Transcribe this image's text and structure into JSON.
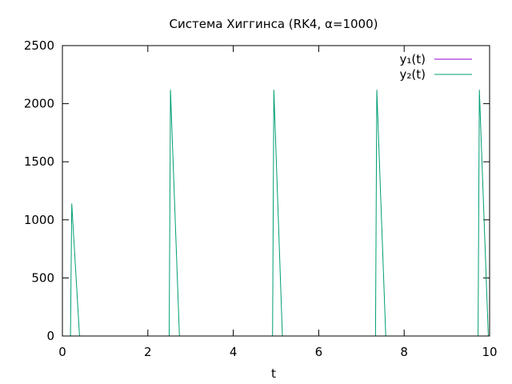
{
  "chart_data": {
    "type": "line",
    "title": "Система Хиггинса (RK4, α=1000)",
    "xlabel": "t",
    "ylabel": "",
    "xlim": [
      0,
      10
    ],
    "ylim": [
      0,
      2500
    ],
    "xticks": [
      0,
      2,
      4,
      6,
      8,
      10
    ],
    "yticks": [
      0,
      500,
      1000,
      1500,
      2000,
      2500
    ],
    "grid": false,
    "legend_position": "top-right",
    "series": [
      {
        "name": "y₁(t)",
        "color": "#9400d3",
        "x": [
          0,
          10
        ],
        "y": [
          0,
          0
        ]
      },
      {
        "name": "y₂(t)",
        "color": "#009e73",
        "x": [
          0,
          0.19,
          0.22,
          0.4,
          0.43,
          2.5,
          2.53,
          2.74,
          2.76,
          4.92,
          4.95,
          5.15,
          5.17,
          7.33,
          7.36,
          7.57,
          7.59,
          9.73,
          9.76,
          9.97,
          10
        ],
        "y": [
          0,
          0,
          1140,
          0,
          0,
          0,
          2120,
          0,
          0,
          0,
          2120,
          0,
          0,
          0,
          2120,
          0,
          0,
          0,
          2120,
          0,
          0
        ]
      }
    ]
  }
}
